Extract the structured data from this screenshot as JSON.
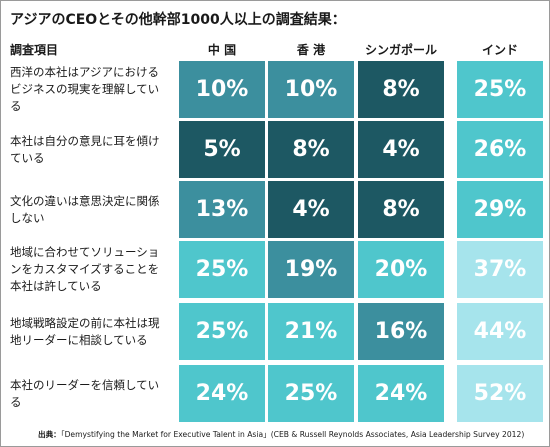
{
  "chart_data": {
    "type": "table",
    "title": "アジアのCEOとその他幹部1000人以上の調査結果：",
    "row_header": "調査項目",
    "columns": [
      "中 国",
      "香 港",
      "シンガポール",
      "インド"
    ],
    "rows": [
      {
        "label": "西洋の本社はアジアにおけるビジネスの現実を理解している",
        "values": [
          "10%",
          "10%",
          "8%",
          "25%"
        ],
        "colors": [
          "#3c8f9e",
          "#3c8f9e",
          "#1d5863",
          "#4fc6cc"
        ]
      },
      {
        "label": "本社は自分の意見に耳を傾けている",
        "values": [
          "5%",
          "8%",
          "4%",
          "26%"
        ],
        "colors": [
          "#1d5863",
          "#1d5863",
          "#1d5863",
          "#4fc6cc"
        ]
      },
      {
        "label": "文化の違いは意思決定に関係しない",
        "values": [
          "13%",
          "4%",
          "8%",
          "29%"
        ],
        "colors": [
          "#3c8f9e",
          "#1d5863",
          "#1d5863",
          "#4fc6cc"
        ]
      },
      {
        "label": "地域に合わせてソリューションをカスタマイズすることを本社は許している",
        "values": [
          "25%",
          "19%",
          "20%",
          "37%"
        ],
        "colors": [
          "#4fc6cc",
          "#3c8f9e",
          "#4fc6cc",
          "#a6e4ec"
        ]
      },
      {
        "label": "地域戦略設定の前に本社は現地リーダーに相談している",
        "values": [
          "25%",
          "21%",
          "16%",
          "44%"
        ],
        "colors": [
          "#4fc6cc",
          "#4fc6cc",
          "#3c8f9e",
          "#a6e4ec"
        ]
      },
      {
        "label": "本社のリーダーを信頼している",
        "values": [
          "24%",
          "25%",
          "24%",
          "52%"
        ],
        "colors": [
          "#4fc6cc",
          "#4fc6cc",
          "#4fc6cc",
          "#a6e4ec"
        ]
      }
    ]
  },
  "source": {
    "label": "出典：",
    "text": "「Demystifying the Market for Executive Talent in Asia」(CEB & Russell Reynolds Associates, Asia Leadership Survey 2012)"
  }
}
